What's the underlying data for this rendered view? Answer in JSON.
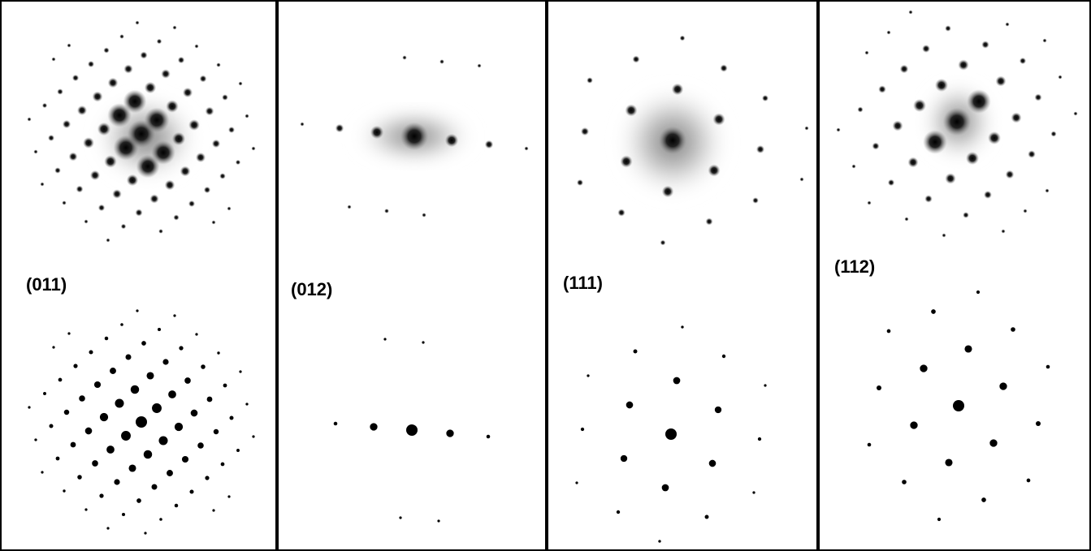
{
  "panels": [
    {
      "label": "(011)"
    },
    {
      "label": "(012)"
    },
    {
      "label": "(111)"
    },
    {
      "label": "(112)"
    }
  ]
}
